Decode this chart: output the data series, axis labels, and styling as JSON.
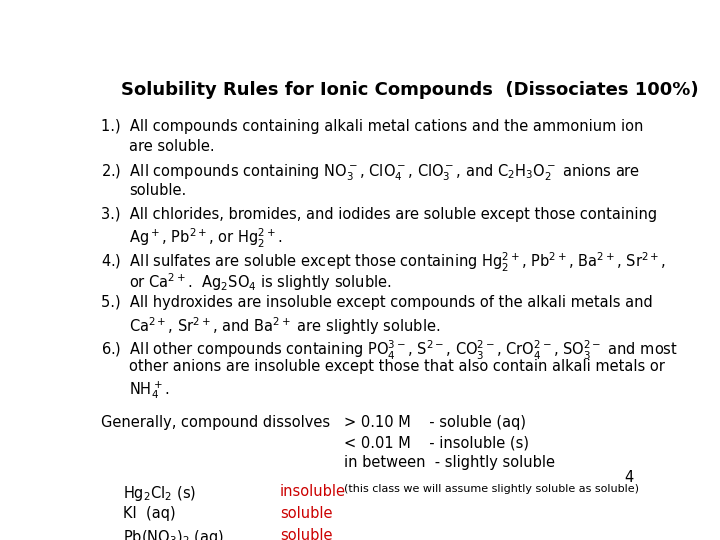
{
  "title": "Solubility Rules for Ionic Compounds  (Dissociates 100%)",
  "background": "#ffffff",
  "title_fontsize": 13,
  "body_fontsize": 10.5,
  "small_fontsize": 8,
  "generally": "Generally, compound dissolves",
  "gt": "> 0.10 M    - soluble (aq)",
  "lt": "< 0.01 M    - insoluble (s)",
  "between": "in between  - slightly soluble",
  "note": "(this class we will assume slightly soluble as soluble)",
  "page_num": "4"
}
